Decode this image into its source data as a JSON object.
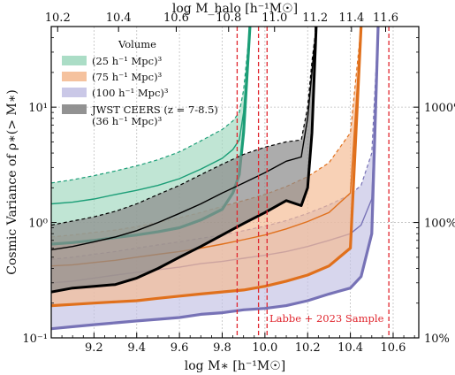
{
  "chart_data": {
    "type": "area",
    "title": "",
    "xlabel": "log M∗ [h⁻¹M☉]",
    "x2label": "log M_halo [h⁻¹M☉]",
    "ylabel": "Cosmic Variance of ρ∗(> M∗)",
    "xlim": [
      9.0,
      10.72
    ],
    "ylim": [
      0.1,
      50
    ],
    "yscale": "log",
    "grid": true,
    "legend_location": "upper-left",
    "legend_title": "Volume",
    "xticks": [
      "9.2",
      "9.4",
      "9.6",
      "9.8",
      "10.0",
      "10.2",
      "10.4",
      "10.6"
    ],
    "yticks": [
      "10⁻¹",
      "10⁰",
      "10¹"
    ],
    "yticks_right": [
      "10%",
      "100%",
      "1000%"
    ],
    "top_axis": {
      "ticks": [
        {
          "halo": "10.2",
          "mstar": 9.03
        },
        {
          "halo": "10.4",
          "mstar": 9.315
        },
        {
          "halo": "10.6",
          "mstar": 9.585
        },
        {
          "halo": "10.8",
          "mstar": 9.83
        },
        {
          "halo": "11.0",
          "mstar": 10.045
        },
        {
          "halo": "11.2",
          "mstar": 10.235
        },
        {
          "halo": "11.4",
          "mstar": 10.405
        },
        {
          "halo": "11.6",
          "mstar": 10.565
        }
      ]
    },
    "vlines": {
      "label": "Labbe + 2023 Sample",
      "x": [
        9.87,
        9.97,
        10.01,
        10.58
      ],
      "color": "#e0262e"
    },
    "series": [
      {
        "name": "(100 h⁻¹ Mpc)³",
        "color": "#7772b6",
        "fill": "#c4c2e4",
        "x": [
          9.0,
          9.1,
          9.2,
          9.3,
          9.4,
          9.5,
          9.6,
          9.7,
          9.8,
          9.9,
          10.0,
          10.1,
          10.2,
          10.3,
          10.4,
          10.45,
          10.5,
          10.53
        ],
        "lower": [
          0.12,
          0.125,
          0.13,
          0.135,
          0.14,
          0.145,
          0.15,
          0.16,
          0.165,
          0.175,
          0.18,
          0.19,
          0.21,
          0.24,
          0.27,
          0.34,
          0.8,
          50
        ],
        "median": [
          0.3,
          0.31,
          0.33,
          0.35,
          0.37,
          0.39,
          0.41,
          0.44,
          0.46,
          0.49,
          0.52,
          0.56,
          0.62,
          0.7,
          0.8,
          0.95,
          1.6,
          50
        ],
        "upper": [
          0.48,
          0.5,
          0.53,
          0.56,
          0.6,
          0.64,
          0.68,
          0.73,
          0.78,
          0.85,
          0.93,
          1.04,
          1.2,
          1.42,
          1.75,
          2.1,
          4,
          50
        ]
      },
      {
        "name": "(75 h⁻¹ Mpc)³",
        "color": "#e0701c",
        "fill": "#f4bb94",
        "x": [
          9.0,
          9.1,
          9.2,
          9.3,
          9.4,
          9.5,
          9.6,
          9.7,
          9.8,
          9.9,
          10.0,
          10.1,
          10.2,
          10.3,
          10.4,
          10.45
        ],
        "lower": [
          0.19,
          0.195,
          0.2,
          0.205,
          0.21,
          0.22,
          0.23,
          0.24,
          0.25,
          0.26,
          0.28,
          0.31,
          0.35,
          0.42,
          0.6,
          50
        ],
        "median": [
          0.42,
          0.43,
          0.45,
          0.47,
          0.5,
          0.53,
          0.56,
          0.6,
          0.65,
          0.71,
          0.78,
          0.88,
          1.02,
          1.22,
          1.8,
          50
        ],
        "upper": [
          0.75,
          0.78,
          0.82,
          0.86,
          0.92,
          1.0,
          1.1,
          1.22,
          1.38,
          1.55,
          1.75,
          2.05,
          2.5,
          3.3,
          6,
          50
        ]
      },
      {
        "name": "(25 h⁻¹ Mpc)³",
        "color": "#1b9e77",
        "fill": "#a2d9c0",
        "x": [
          9.0,
          9.1,
          9.2,
          9.3,
          9.4,
          9.5,
          9.6,
          9.7,
          9.8,
          9.85,
          9.88,
          9.9,
          9.93
        ],
        "lower": [
          0.65,
          0.67,
          0.7,
          0.74,
          0.78,
          0.83,
          0.9,
          1.05,
          1.3,
          1.8,
          2.6,
          6,
          50
        ],
        "median": [
          1.45,
          1.5,
          1.6,
          1.75,
          1.9,
          2.1,
          2.4,
          2.9,
          3.6,
          4.3,
          5.2,
          9,
          50
        ],
        "upper": [
          2.2,
          2.35,
          2.55,
          2.8,
          3.1,
          3.5,
          4.1,
          5.1,
          6.4,
          7.6,
          9.0,
          14,
          50
        ]
      },
      {
        "name": "JWST CEERS (z = 7-8.5)",
        "name_line2": "(36 h⁻¹ Mpc)³",
        "color": "#000000",
        "fill": "#8c8c8c",
        "x": [
          9.0,
          9.1,
          9.2,
          9.3,
          9.4,
          9.5,
          9.6,
          9.7,
          9.8,
          9.9,
          10.0,
          10.1,
          10.17,
          10.2,
          10.22,
          10.24
        ],
        "lower": [
          0.25,
          0.27,
          0.28,
          0.29,
          0.33,
          0.4,
          0.5,
          0.62,
          0.78,
          0.98,
          1.22,
          1.55,
          1.4,
          2.0,
          6,
          50
        ],
        "median": [
          0.58,
          0.62,
          0.68,
          0.75,
          0.85,
          1.0,
          1.2,
          1.45,
          1.8,
          2.2,
          2.7,
          3.4,
          3.7,
          8,
          20,
          50
        ],
        "upper": [
          0.95,
          1.03,
          1.12,
          1.25,
          1.45,
          1.75,
          2.1,
          2.6,
          3.2,
          3.9,
          4.5,
          5.0,
          5.2,
          10,
          25,
          50
        ]
      }
    ]
  }
}
